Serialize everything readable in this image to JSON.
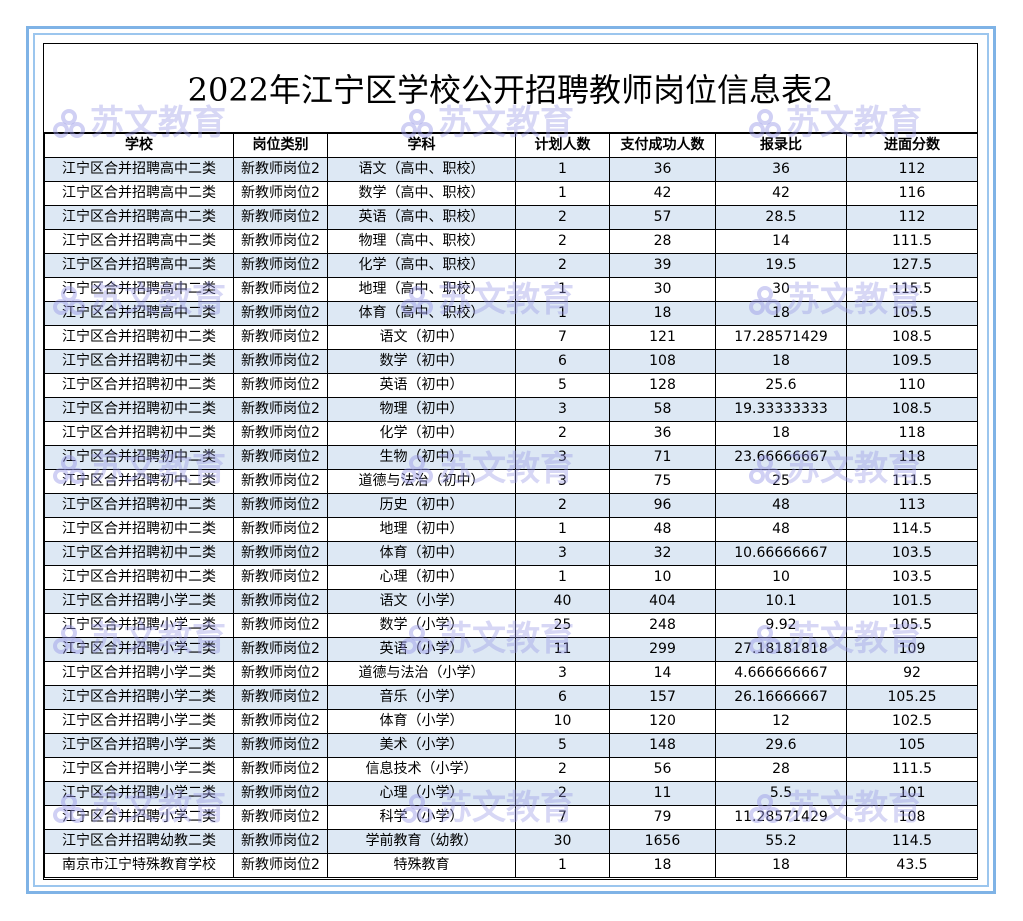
{
  "title": "2022年江宁区学校公开招聘教师岗位信息表2",
  "watermark_text": "苏文教育",
  "columns": [
    "学校",
    "岗位类别",
    "学科",
    "计划人数",
    "支付成功人数",
    "报录比",
    "进面分数"
  ],
  "rows": [
    [
      "江宁区合并招聘高中二类",
      "新教师岗位2",
      "语文（高中、职校）",
      "1",
      "36",
      "36",
      "112"
    ],
    [
      "江宁区合并招聘高中二类",
      "新教师岗位2",
      "数学（高中、职校）",
      "1",
      "42",
      "42",
      "116"
    ],
    [
      "江宁区合并招聘高中二类",
      "新教师岗位2",
      "英语（高中、职校）",
      "2",
      "57",
      "28.5",
      "112"
    ],
    [
      "江宁区合并招聘高中二类",
      "新教师岗位2",
      "物理（高中、职校）",
      "2",
      "28",
      "14",
      "111.5"
    ],
    [
      "江宁区合并招聘高中二类",
      "新教师岗位2",
      "化学（高中、职校）",
      "2",
      "39",
      "19.5",
      "127.5"
    ],
    [
      "江宁区合并招聘高中二类",
      "新教师岗位2",
      "地理（高中、职校）",
      "1",
      "30",
      "30",
      "115.5"
    ],
    [
      "江宁区合并招聘高中二类",
      "新教师岗位2",
      "体育（高中、职校）",
      "1",
      "18",
      "18",
      "105.5"
    ],
    [
      "江宁区合并招聘初中二类",
      "新教师岗位2",
      "语文（初中）",
      "7",
      "121",
      "17.28571429",
      "108.5"
    ],
    [
      "江宁区合并招聘初中二类",
      "新教师岗位2",
      "数学（初中）",
      "6",
      "108",
      "18",
      "109.5"
    ],
    [
      "江宁区合并招聘初中二类",
      "新教师岗位2",
      "英语（初中）",
      "5",
      "128",
      "25.6",
      "110"
    ],
    [
      "江宁区合并招聘初中二类",
      "新教师岗位2",
      "物理（初中）",
      "3",
      "58",
      "19.33333333",
      "108.5"
    ],
    [
      "江宁区合并招聘初中二类",
      "新教师岗位2",
      "化学（初中）",
      "2",
      "36",
      "18",
      "118"
    ],
    [
      "江宁区合并招聘初中二类",
      "新教师岗位2",
      "生物（初中）",
      "3",
      "71",
      "23.66666667",
      "118"
    ],
    [
      "江宁区合并招聘初中二类",
      "新教师岗位2",
      "道德与法治（初中）",
      "3",
      "75",
      "25",
      "111.5"
    ],
    [
      "江宁区合并招聘初中二类",
      "新教师岗位2",
      "历史（初中）",
      "2",
      "96",
      "48",
      "113"
    ],
    [
      "江宁区合并招聘初中二类",
      "新教师岗位2",
      "地理（初中）",
      "1",
      "48",
      "48",
      "114.5"
    ],
    [
      "江宁区合并招聘初中二类",
      "新教师岗位2",
      "体育（初中）",
      "3",
      "32",
      "10.66666667",
      "103.5"
    ],
    [
      "江宁区合并招聘初中二类",
      "新教师岗位2",
      "心理（初中）",
      "1",
      "10",
      "10",
      "103.5"
    ],
    [
      "江宁区合并招聘小学二类",
      "新教师岗位2",
      "语文（小学）",
      "40",
      "404",
      "10.1",
      "101.5"
    ],
    [
      "江宁区合并招聘小学二类",
      "新教师岗位2",
      "数学（小学）",
      "25",
      "248",
      "9.92",
      "105.5"
    ],
    [
      "江宁区合并招聘小学二类",
      "新教师岗位2",
      "英语（小学）",
      "11",
      "299",
      "27.18181818",
      "109"
    ],
    [
      "江宁区合并招聘小学二类",
      "新教师岗位2",
      "道德与法治（小学）",
      "3",
      "14",
      "4.666666667",
      "92"
    ],
    [
      "江宁区合并招聘小学二类",
      "新教师岗位2",
      "音乐（小学）",
      "6",
      "157",
      "26.16666667",
      "105.25"
    ],
    [
      "江宁区合并招聘小学二类",
      "新教师岗位2",
      "体育（小学）",
      "10",
      "120",
      "12",
      "102.5"
    ],
    [
      "江宁区合并招聘小学二类",
      "新教师岗位2",
      "美术（小学）",
      "5",
      "148",
      "29.6",
      "105"
    ],
    [
      "江宁区合并招聘小学二类",
      "新教师岗位2",
      "信息技术（小学）",
      "2",
      "56",
      "28",
      "111.5"
    ],
    [
      "江宁区合并招聘小学二类",
      "新教师岗位2",
      "心理（小学）",
      "2",
      "11",
      "5.5",
      "101"
    ],
    [
      "江宁区合并招聘小学二类",
      "新教师岗位2",
      "科学（小学）",
      "7",
      "79",
      "11.28571429",
      "108"
    ],
    [
      "江宁区合并招聘幼教二类",
      "新教师岗位2",
      "学前教育（幼教）",
      "30",
      "1656",
      "55.2",
      "114.5"
    ],
    [
      "南京市江宁特殊教育学校",
      "新教师岗位2",
      "特殊教育",
      "1",
      "18",
      "18",
      "43.5"
    ]
  ],
  "colors": {
    "stripe": "#dde8f4",
    "frame": "#7fb3e6",
    "watermark": "#9696e6"
  }
}
